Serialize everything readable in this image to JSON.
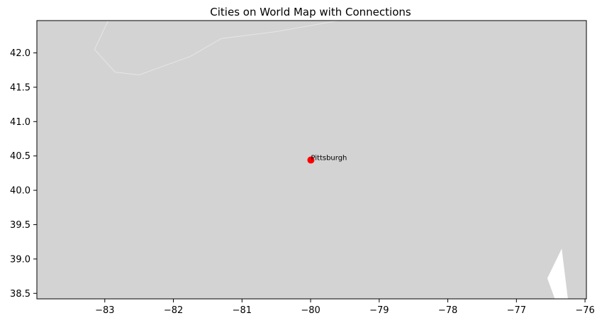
{
  "chart_data": {
    "type": "scatter",
    "title": "Cities on World Map with Connections",
    "xlabel": "",
    "ylabel": "",
    "xlim": [
      -83.99,
      -75.98
    ],
    "ylim": [
      38.42,
      42.47
    ],
    "x_ticks": [
      -83,
      -82,
      -81,
      -80,
      -79,
      -78,
      -77,
      -76
    ],
    "x_tick_labels": [
      "−83",
      "−82",
      "−81",
      "−80",
      "−79",
      "−78",
      "−77",
      "−76"
    ],
    "y_ticks": [
      38.5,
      39.0,
      39.5,
      40.0,
      40.5,
      41.0,
      41.5,
      42.0
    ],
    "y_tick_labels": [
      "38.5",
      "39.0",
      "39.5",
      "40.0",
      "40.5",
      "41.0",
      "41.5",
      "42.0"
    ],
    "grid": false,
    "colors": {
      "land": "#d3d3d3",
      "water": "#ffffff",
      "boundary": "#e6e6e6",
      "city_marker": "#ff0000"
    },
    "cities": [
      {
        "name": "Pittsburgh",
        "lon": -79.9959,
        "lat": 40.4406
      }
    ],
    "geo_features": {
      "lake_erie_shore": [
        [
          -82.95,
          42.47
        ],
        [
          -83.15,
          42.05
        ],
        [
          -82.85,
          41.72
        ],
        [
          -82.5,
          41.68
        ],
        [
          -81.75,
          41.95
        ],
        [
          -81.3,
          42.21
        ],
        [
          -80.5,
          42.31
        ],
        [
          -79.7,
          42.45
        ],
        [
          -79.6,
          42.47
        ]
      ],
      "chesapeake_water": [
        [
          -76.34,
          39.15
        ],
        [
          -76.55,
          38.72
        ],
        [
          -76.44,
          38.42
        ],
        [
          -76.25,
          38.42
        ]
      ]
    }
  }
}
